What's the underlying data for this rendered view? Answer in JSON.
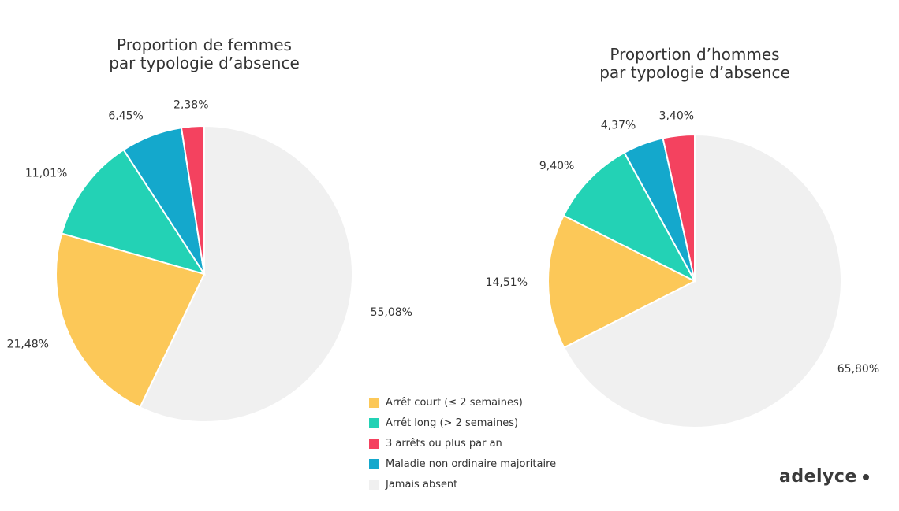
{
  "colors": {
    "arret_court": "#FCC858",
    "arret_long": "#23D2B5",
    "trois_arrets": "#F4425F",
    "maladie": "#14A8CC",
    "jamais": "#F0F0F0"
  },
  "legend": [
    {
      "key": "arret_court",
      "label": "Arrêt court (≤ 2 semaines)"
    },
    {
      "key": "arret_long",
      "label": "Arrêt long (> 2 semaines)"
    },
    {
      "key": "trois_arrets",
      "label": "3 arrêts ou plus par an"
    },
    {
      "key": "maladie",
      "label": "Maladie non ordinaire majoritaire"
    },
    {
      "key": "jamais",
      "label": "Jamais absent"
    }
  ],
  "brand": "adelyce",
  "chart_data": [
    {
      "type": "pie",
      "title": "Proportion de femmes par typologie d’absence",
      "title_lines": [
        "Proportion de femmes",
        "par typologie d’absence"
      ],
      "slices": [
        {
          "key": "jamais",
          "value": 55.08,
          "label": "55,08%"
        },
        {
          "key": "arret_court",
          "value": 21.48,
          "label": "21,48%"
        },
        {
          "key": "arret_long",
          "value": 11.01,
          "label": "11,01%"
        },
        {
          "key": "maladie",
          "value": 6.45,
          "label": "6,45%"
        },
        {
          "key": "trois_arrets",
          "value": 2.38,
          "label": "2,38%"
        }
      ]
    },
    {
      "type": "pie",
      "title": "Proportion d’hommes par typologie d’absence",
      "title_lines": [
        "Proportion d’hommes",
        "par typologie d’absence"
      ],
      "slices": [
        {
          "key": "jamais",
          "value": 65.8,
          "label": "65,80%"
        },
        {
          "key": "arret_court",
          "value": 14.51,
          "label": "14,51%"
        },
        {
          "key": "arret_long",
          "value": 9.4,
          "label": "9,40%"
        },
        {
          "key": "maladie",
          "value": 4.37,
          "label": "4,37%"
        },
        {
          "key": "trois_arrets",
          "value": 3.4,
          "label": "3,40%"
        }
      ]
    }
  ]
}
